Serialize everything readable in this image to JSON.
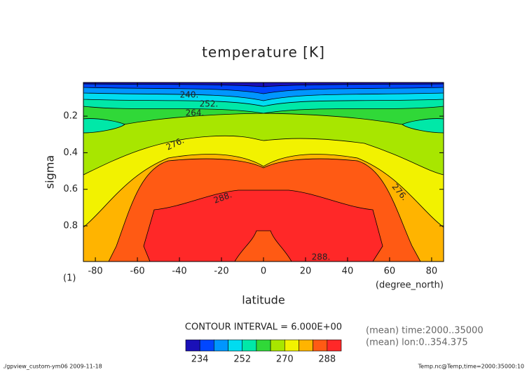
{
  "chart_data": {
    "type": "contour",
    "title": "temperature [K]",
    "xlabel": "latitude",
    "ylabel": "sigma",
    "x_unit": "(degree_north)",
    "y_unit": "(1)",
    "xlim": [
      -85.7,
      85.7
    ],
    "ylim": [
      0.016,
      0.995
    ],
    "y_inverted": true,
    "xticks": [
      -80,
      -60,
      -40,
      -20,
      0,
      20,
      40,
      60,
      80
    ],
    "yticks": [
      0.2,
      0.4,
      0.6,
      0.8
    ],
    "contour_labels": [
      "240.",
      "252.",
      "264.",
      "276.",
      "288.",
      "276.",
      "288."
    ],
    "contour_interval_text": "CONTOUR INTERVAL = 6.000E+00",
    "notes": [
      "(mean) time:2000..35000",
      "(mean) lon:0..354.375"
    ],
    "footer_left": "./gpview_custom-ym06  2009-11-18",
    "footer_right": "Temp.nc@Temp,time=2000:35000:10",
    "colorbar": {
      "levels": [
        228,
        234,
        240,
        246,
        252,
        258,
        264,
        270,
        276,
        282,
        288,
        294
      ],
      "colors": [
        "#1a10b8",
        "#0046ff",
        "#0096ff",
        "#00dcf0",
        "#00e8a8",
        "#30d838",
        "#a8e600",
        "#f2f200",
        "#ffb400",
        "#ff5a14",
        "#ff2828"
      ],
      "ticks": [
        234,
        252,
        270,
        288
      ]
    }
  }
}
